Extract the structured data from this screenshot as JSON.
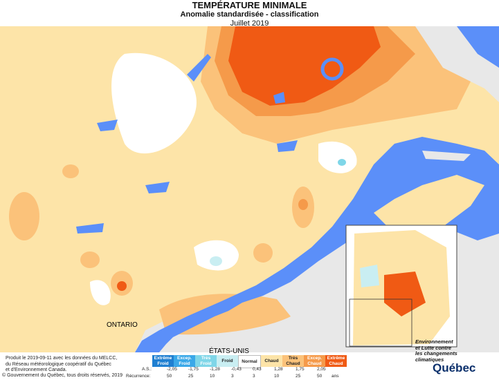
{
  "header": {
    "title": "TEMPÉRATURE MINIMALE",
    "subtitle": "Anomalie standardisée - classification",
    "period": "Juillet 2019"
  },
  "map_labels": {
    "ontario": "ONTARIO",
    "usa": "ÉTATS-UNIS"
  },
  "legend": {
    "classes": [
      {
        "label": "Extrême Froid",
        "color": "#1f7fd1"
      },
      {
        "label": "Excep. Froid",
        "color": "#3aa8e8"
      },
      {
        "label": "Très Froid",
        "color": "#7fd6e8"
      },
      {
        "label": "Froid",
        "color": "#c9eef2"
      },
      {
        "label": "Normal",
        "color": "#ffffff"
      },
      {
        "label": "Chaud",
        "color": "#fde4a8"
      },
      {
        "label": "Très Chaud",
        "color": "#fbc27a"
      },
      {
        "label": "Excep. Chaud",
        "color": "#f59a4a"
      },
      {
        "label": "Extrême Chaud",
        "color": "#f05a14"
      }
    ],
    "as_label": "A.S.:",
    "as_values": [
      "-2,05",
      "-1,75",
      "-1,28",
      "-0,43",
      "0,43",
      "1,28",
      "1,75",
      "2,05"
    ],
    "recurrence_label": "Récurrence:",
    "recurrence_values": [
      "50",
      "25",
      "10",
      "3",
      "3",
      "10",
      "25",
      "50"
    ],
    "recurrence_unit": "ans"
  },
  "footer": {
    "line1": "Produit le 2019-09-11 avec les données du MELCC,",
    "line2": "du Réseau météorologique coopératif du Québec",
    "line3": "et d'Environnement Canada.",
    "copyright": "© Gouvernement du Québec, tous droits réservés, 2019"
  },
  "ministry": {
    "line1": "Environnement",
    "line2": "et Lutte contre",
    "line3": "les changements",
    "line4": "climatiques",
    "logo": "Québec"
  },
  "colors": {
    "water": "#5b8ff9",
    "land_outside": "#e8e8e8",
    "chaud": "#fde4a8",
    "tres_chaud": "#fbc27a",
    "excep_chaud": "#f59a4a",
    "extreme_chaud": "#f05a14"
  }
}
